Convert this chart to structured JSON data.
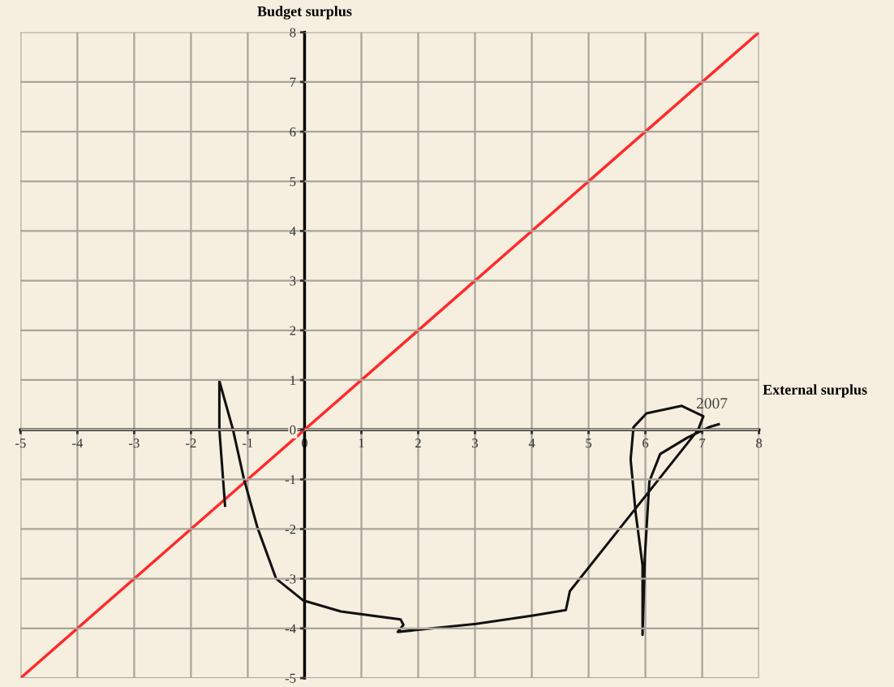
{
  "chart_data": {
    "type": "line",
    "xlabel": "External surplus",
    "ylabel": "Budget surplus",
    "series": [
      {
        "color": "#ff2a2a",
        "x": [
          -5,
          8
        ],
        "values": [
          -5,
          8
        ]
      },
      {
        "color": "#111111",
        "x": [
          -1.4,
          -1.5,
          -1.5,
          -1.26,
          -1.07,
          -0.83,
          -0.5,
          -0.02,
          0.64,
          1.69,
          1.74,
          1.64,
          2.07,
          3.02,
          4.02,
          4.6,
          4.67,
          6.93,
          7.02,
          6.64,
          6.02,
          5.79,
          5.74,
          5.83,
          5.95,
          5.95,
          5.99,
          6.07,
          6.26,
          6.74,
          7.12,
          7.29
        ],
        "values": [
          -1.53,
          0,
          0.98,
          0,
          -0.98,
          -1.97,
          -3.0,
          -3.44,
          -3.66,
          -3.82,
          -3.93,
          -4.07,
          -4.02,
          -3.91,
          -3.74,
          -3.63,
          -3.25,
          0,
          0.27,
          0.48,
          0.33,
          0.05,
          -0.6,
          -1.69,
          -2.73,
          -4.13,
          -2.57,
          -1.04,
          -0.49,
          -0.16,
          0.05,
          0.11
        ]
      }
    ],
    "annotations": [
      {
        "text": "2007",
        "x": 7.29,
        "y": 0.11
      }
    ],
    "xlim": [
      -5,
      8
    ],
    "ylim": [
      -5,
      8
    ],
    "xticks": [
      -5,
      -4,
      -3,
      -2,
      -1,
      0,
      1,
      2,
      3,
      4,
      5,
      6,
      7,
      8
    ],
    "yticks": [
      -5,
      -4,
      -3,
      -2,
      -1,
      0,
      1,
      2,
      3,
      4,
      5,
      6,
      7,
      8
    ],
    "grid": true,
    "marker": "none",
    "line_style": "solid"
  }
}
